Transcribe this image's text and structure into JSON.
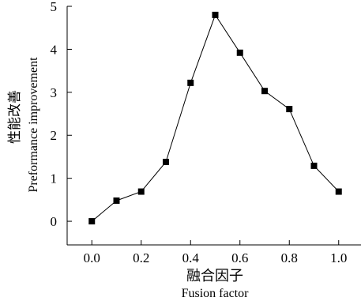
{
  "chart_data": {
    "type": "line",
    "xlabel_cn": "融合因子",
    "xlabel_en": "Fusion factor",
    "ylabel_cn": "性能改善",
    "ylabel_en": "Preformance improvement",
    "xlim": [
      -0.1,
      1.1
    ],
    "ylim": [
      -0.55,
      5.0
    ],
    "xticks": [
      0.0,
      0.2,
      0.4,
      0.6,
      0.8,
      1.0
    ],
    "xtick_labels": [
      "0.0",
      "0.2",
      "0.4",
      "0.6",
      "0.8",
      "1.0"
    ],
    "yticks": [
      0,
      1,
      2,
      3,
      4,
      5
    ],
    "ytick_labels": [
      "0",
      "1",
      "2",
      "3",
      "4",
      "5"
    ],
    "marker": "square",
    "series_color": "#000000",
    "grid": false,
    "series": [
      {
        "x": [
          0.0,
          0.1,
          0.2,
          0.3,
          0.4,
          0.5,
          0.6,
          0.7,
          0.8,
          0.9,
          1.0
        ],
        "y": [
          0.0,
          0.48,
          0.69,
          1.38,
          3.22,
          4.8,
          3.92,
          3.03,
          2.61,
          1.29,
          0.69
        ]
      }
    ]
  }
}
